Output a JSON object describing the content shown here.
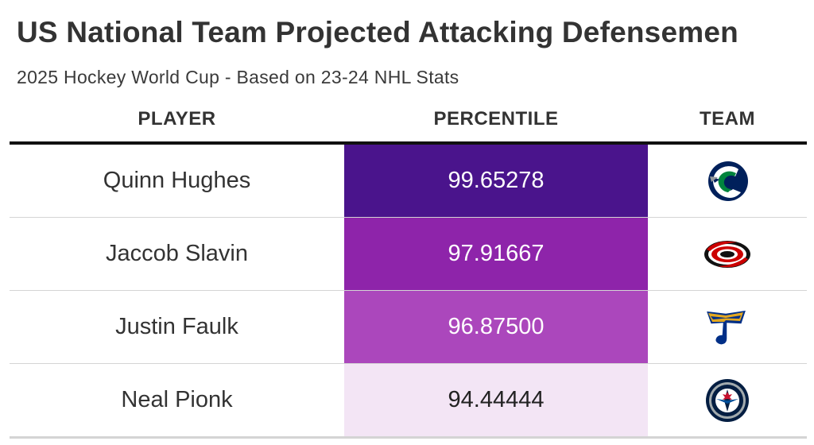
{
  "header": {
    "title": "US National Team Projected Attacking Defensemen",
    "subtitle": "2025 Hockey World Cup - Based on 23-24 NHL Stats"
  },
  "columns": [
    "PLAYER",
    "PERCENTILE",
    "TEAM"
  ],
  "colors": {
    "fill_high": "#4a148c",
    "fill_low": "#f3e5f5",
    "text_dark": "#222222",
    "text_light": "#ffffff"
  },
  "chart_data": {
    "type": "table",
    "title": "US National Team Projected Attacking Defensemen",
    "subtitle": "2025 Hockey World Cup - Based on 23-24 NHL Stats",
    "columns": [
      "PLAYER",
      "PERCENTILE",
      "TEAM"
    ],
    "rows": [
      {
        "player": "Quinn Hughes",
        "percentile": "99.65278",
        "value": 99.65278,
        "team_icon": "canucks-logo-icon",
        "fill": "#4a148c",
        "text_color": "#ffffff"
      },
      {
        "player": "Jaccob Slavin",
        "percentile": "97.91667",
        "value": 97.91667,
        "team_icon": "hurricanes-logo-icon",
        "fill": "#8e24aa",
        "text_color": "#ffffff"
      },
      {
        "player": "Justin Faulk",
        "percentile": "96.87500",
        "value": 96.875,
        "team_icon": "blues-logo-icon",
        "fill": "#ab47bc",
        "text_color": "#ffffff"
      },
      {
        "player": "Neal Pionk",
        "percentile": "94.44444",
        "value": 94.44444,
        "team_icon": "jets-logo-icon",
        "fill": "#f3e5f5",
        "text_color": "#222222"
      }
    ]
  }
}
